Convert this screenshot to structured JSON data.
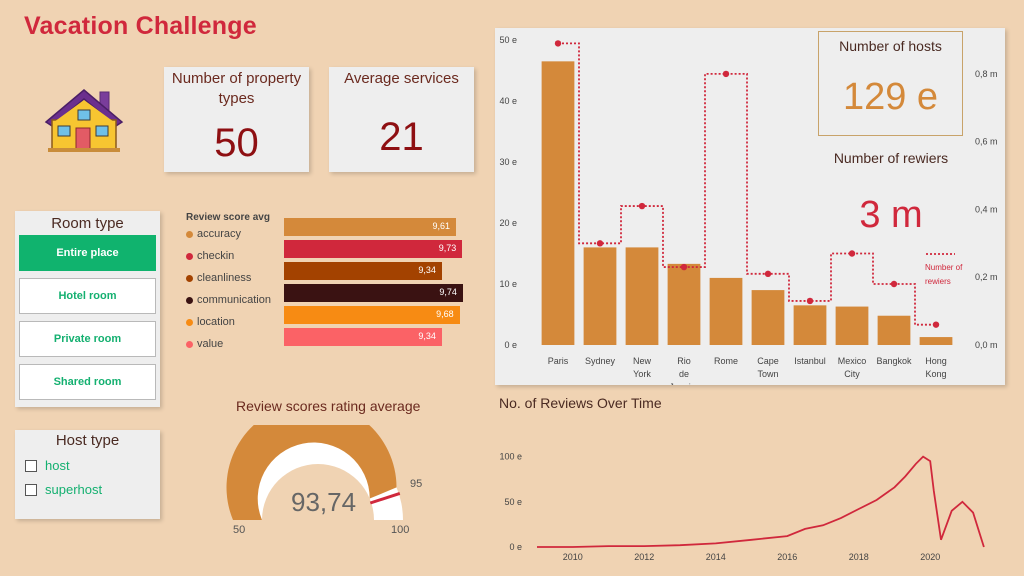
{
  "title": "Vacation Challenge",
  "logo_icon": "house-icon",
  "kpi": {
    "property_types_label": "Number of property types",
    "property_types_value": "50",
    "avg_services_label": "Average services",
    "avg_services_value": "21",
    "hosts_label": "Number of hosts",
    "hosts_value": "129 e",
    "reviewers_label": "Number of rewiers",
    "reviewers_value": "3 m"
  },
  "room_type": {
    "title": "Room type",
    "options": [
      "Entire place",
      "Hotel room",
      "Private room",
      "Shared room"
    ],
    "selected": "Entire place"
  },
  "host_type": {
    "title": "Host type",
    "options": [
      "host",
      "superhost"
    ]
  },
  "review_scores": {
    "title": "Review score avg",
    "items": [
      {
        "label": "accuracy",
        "value": "9,61",
        "color": "#d4893a"
      },
      {
        "label": "checkin",
        "value": "9,73",
        "color": "#d0283c"
      },
      {
        "label": "cleanliness",
        "value": "9,34",
        "color": "#a34200"
      },
      {
        "label": "communication",
        "value": "9,74",
        "color": "#3a1212"
      },
      {
        "label": "location",
        "value": "9,68",
        "color": "#f78b13"
      },
      {
        "label": "value",
        "value": "9,34",
        "color": "#fb6266"
      }
    ]
  },
  "gauge": {
    "title": "Review scores rating average",
    "value": "93,74",
    "min": "50",
    "max": "100",
    "target": "95",
    "value_num": 93.74,
    "min_num": 50,
    "max_num": 100,
    "target_num": 95
  },
  "chart_data": [
    {
      "type": "bar",
      "title": "",
      "categories": [
        "Paris",
        "Sydney",
        "New York",
        "Rio de Janeiro",
        "Rome",
        "Cape Town",
        "Istanbul",
        "Mexico City",
        "Bangkok",
        "Hong Kong"
      ],
      "series": [
        {
          "name": "Number of hosts",
          "values": [
            46.5,
            16,
            16,
            13.3,
            11,
            9,
            6.5,
            6.3,
            4.8,
            1.3
          ]
        },
        {
          "name": "Number of rewiers",
          "axis": "right",
          "style": "step-line",
          "values": [
            0.89,
            0.3,
            0.41,
            0.23,
            0.8,
            0.21,
            0.13,
            0.27,
            0.18,
            0.06
          ]
        }
      ],
      "yticks": [
        "0 e",
        "10 e",
        "20 e",
        "30 e",
        "40 e",
        "50 e"
      ],
      "y2ticks": [
        "0,0 m",
        "0,2 m",
        "0,4 m",
        "0,6 m",
        "0,8 m"
      ],
      "ylim": [
        0,
        50
      ],
      "y2lim": [
        0,
        0.9
      ],
      "legend": "Number of rewiers",
      "bar_color": "#d4893a",
      "line_color": "#d0283c"
    },
    {
      "type": "line",
      "title": "No. of Reviews Over Time",
      "x": [
        2009,
        2010,
        2011,
        2012,
        2013,
        2014,
        2015,
        2016,
        2016.5,
        2017,
        2017.5,
        2018,
        2018.5,
        2019,
        2019.3,
        2019.6,
        2019.8,
        2020,
        2020.1,
        2020.3,
        2020.6,
        2020.9,
        2021.2,
        2021.5
      ],
      "y": [
        0,
        0,
        1,
        1,
        2,
        4,
        8,
        12,
        20,
        24,
        32,
        42,
        52,
        66,
        78,
        92,
        100,
        95,
        62,
        8,
        40,
        50,
        38,
        0
      ],
      "xticks": [
        "2010",
        "2012",
        "2014",
        "2016",
        "2018",
        "2020"
      ],
      "yticks": [
        "0 e",
        "50 e",
        "100 e"
      ],
      "xlim": [
        2009,
        2021.7
      ],
      "ylim": [
        0,
        115
      ],
      "color": "#d0283c"
    }
  ]
}
